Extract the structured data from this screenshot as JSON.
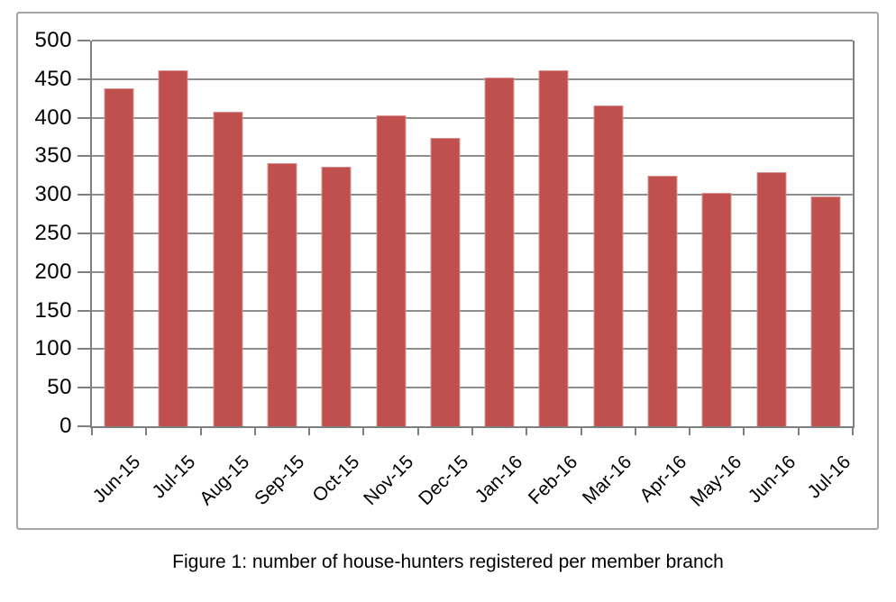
{
  "figure": {
    "caption": "Figure 1: number of house-hunters registered per member branch"
  },
  "chart_data": {
    "type": "bar",
    "title": "",
    "xlabel": "",
    "ylabel": "",
    "categories": [
      "Jun-15",
      "Jul-15",
      "Aug-15",
      "Sep-15",
      "Oct-15",
      "Nov-15",
      "Dec-15",
      "Jan-16",
      "Feb-16",
      "Mar-16",
      "Apr-16",
      "May-16",
      "Jun-16",
      "Jul-16"
    ],
    "values": [
      438,
      461,
      408,
      341,
      336,
      403,
      374,
      452,
      462,
      416,
      325,
      303,
      330,
      298
    ],
    "ylim": [
      0,
      500
    ],
    "yticks": [
      0,
      50,
      100,
      150,
      200,
      250,
      300,
      350,
      400,
      450,
      500
    ],
    "grid": true,
    "legend": false,
    "x_tick_label_rotation_deg": 45,
    "colors": {
      "bar": "#c0504d",
      "bar_edge": "#d99694",
      "gridline": "#8e8e8e",
      "axis": "#7f7f7f",
      "frame_border": "#a6a6a6",
      "text": "#000000"
    }
  }
}
